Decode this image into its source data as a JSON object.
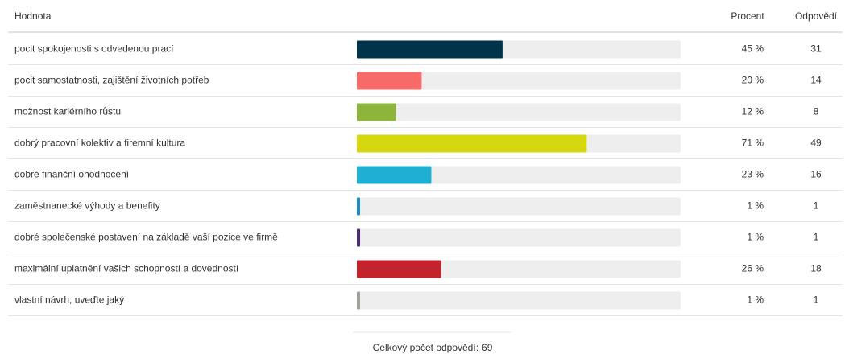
{
  "chart_data": {
    "type": "bar",
    "orientation": "horizontal",
    "headers": [
      "Hodnota",
      "Procent",
      "Odpovědí"
    ],
    "categories": [
      "pocit spokojenosti s odvedenou prací",
      "pocit samostatnosti, zajištění životních potřeb",
      "možnost kariérního růstu",
      "dobrý pracovní kolektiv a firemní kultura",
      "dobré finanční ohodnocení",
      "zaměstnanecké výhody a benefity",
      "dobré společenské postavení na základě vaší pozice ve firmě",
      "maximální uplatnění vašich schopností a dovedností",
      "vlastní návrh, uveďte jaký"
    ],
    "values": [
      45,
      20,
      12,
      71,
      23,
      1,
      1,
      26,
      1
    ],
    "value_labels": [
      "45 %",
      "20 %",
      "12 %",
      "71 %",
      "23 %",
      "1 %",
      "1 %",
      "26 %",
      "1 %"
    ],
    "counts": [
      31,
      14,
      8,
      49,
      16,
      1,
      1,
      18,
      1
    ],
    "colors": [
      "#00344a",
      "#f86a6a",
      "#8db43b",
      "#d6d80f",
      "#1fafd2",
      "#1b8ec6",
      "#4b2b6f",
      "#c4232e",
      "#a3a196"
    ],
    "xlim": [
      0,
      100
    ],
    "total_label": "Celkový počet odpovědí:",
    "total": 69
  }
}
